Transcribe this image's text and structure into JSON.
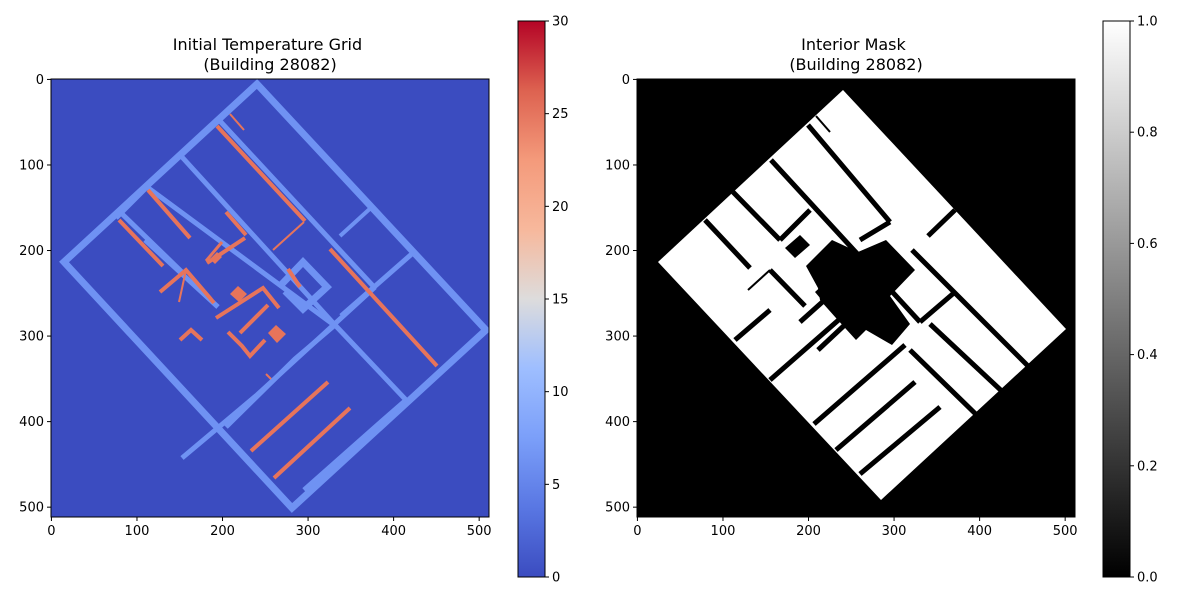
{
  "chart_data": [
    {
      "type": "heatmap",
      "title": "Initial Temperature Grid\n(Building 28082)",
      "colormap": "coolwarm",
      "xlim": [
        0,
        511
      ],
      "ylim": [
        511,
        0
      ],
      "xticks": [
        0,
        100,
        200,
        300,
        400,
        500
      ],
      "yticks": [
        0,
        100,
        200,
        300,
        400,
        500
      ],
      "colorbar": {
        "range": [
          0,
          30
        ],
        "ticks": [
          0,
          5,
          10,
          15,
          20,
          25,
          30
        ]
      },
      "values": {
        "background": 0,
        "exterior_walls": 4,
        "interior_walls": 4,
        "heated_segments": 25
      },
      "colors": {
        "background": "#3b4cc0",
        "walls": "#6f92f3",
        "heated": "#e7745b"
      },
      "building": {
        "corners": [
          [
            240,
            4
          ],
          [
            508,
            292
          ],
          [
            282,
            500
          ],
          [
            14,
            212
          ]
        ]
      }
    },
    {
      "type": "heatmap",
      "title": "Interior Mask\n(Building 28082)",
      "colormap": "gray",
      "xlim": [
        0,
        511
      ],
      "ylim": [
        511,
        0
      ],
      "xticks": [
        0,
        100,
        200,
        300,
        400,
        500
      ],
      "yticks": [
        0,
        100,
        200,
        300,
        400,
        500
      ],
      "colorbar": {
        "range": [
          0,
          1
        ],
        "ticks": [
          "0.0",
          "0.2",
          "0.4",
          "0.6",
          "0.8",
          "1.0"
        ]
      },
      "values": {
        "outside": 0,
        "interior": 1
      },
      "colors": {
        "outside": "#000000",
        "interior": "#ffffff"
      },
      "building": {
        "corners": [
          [
            240,
            10
          ],
          [
            500,
            290
          ],
          [
            285,
            493
          ],
          [
            25,
            212
          ]
        ]
      }
    }
  ]
}
